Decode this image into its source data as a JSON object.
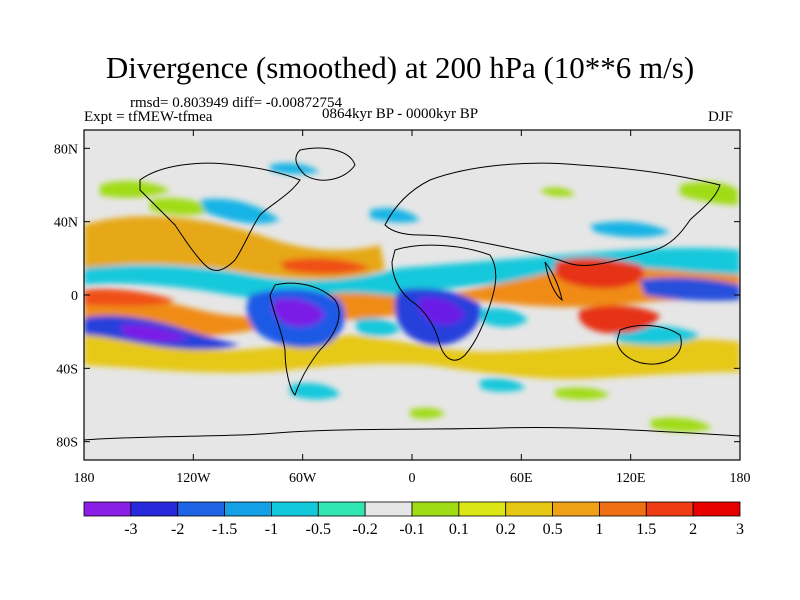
{
  "title": "Divergence (smoothed) at 200 hPa (10**6 m/s)",
  "stats": "rmsd= 0.803949 diff= -0.00872754",
  "experiment": "Expt = tfMEW-tfmea",
  "period": "0864kyr BP - 0000kyr BP",
  "season": "DJF",
  "axes": {
    "lon_ticks": [
      "180",
      "120W",
      "60W",
      "0",
      "60E",
      "120E",
      "180"
    ],
    "lat_ticks": [
      "80N",
      "40N",
      "0",
      "40S",
      "80S"
    ]
  },
  "colorbar": {
    "colors": [
      "#8a1ee6",
      "#2828dc",
      "#1e64e6",
      "#14a0e6",
      "#14c8dc",
      "#32e6b4",
      "#e6e6e6",
      "#a0dc14",
      "#dce614",
      "#e6c814",
      "#f0a014",
      "#f06e14",
      "#f03c14",
      "#e60000"
    ],
    "labels": [
      "-3",
      "-2",
      "-1.5",
      "-1",
      "-0.5",
      "-0.2",
      "-0.1",
      "0.1",
      "0.2",
      "0.5",
      "1",
      "1.5",
      "2",
      "3"
    ]
  }
}
